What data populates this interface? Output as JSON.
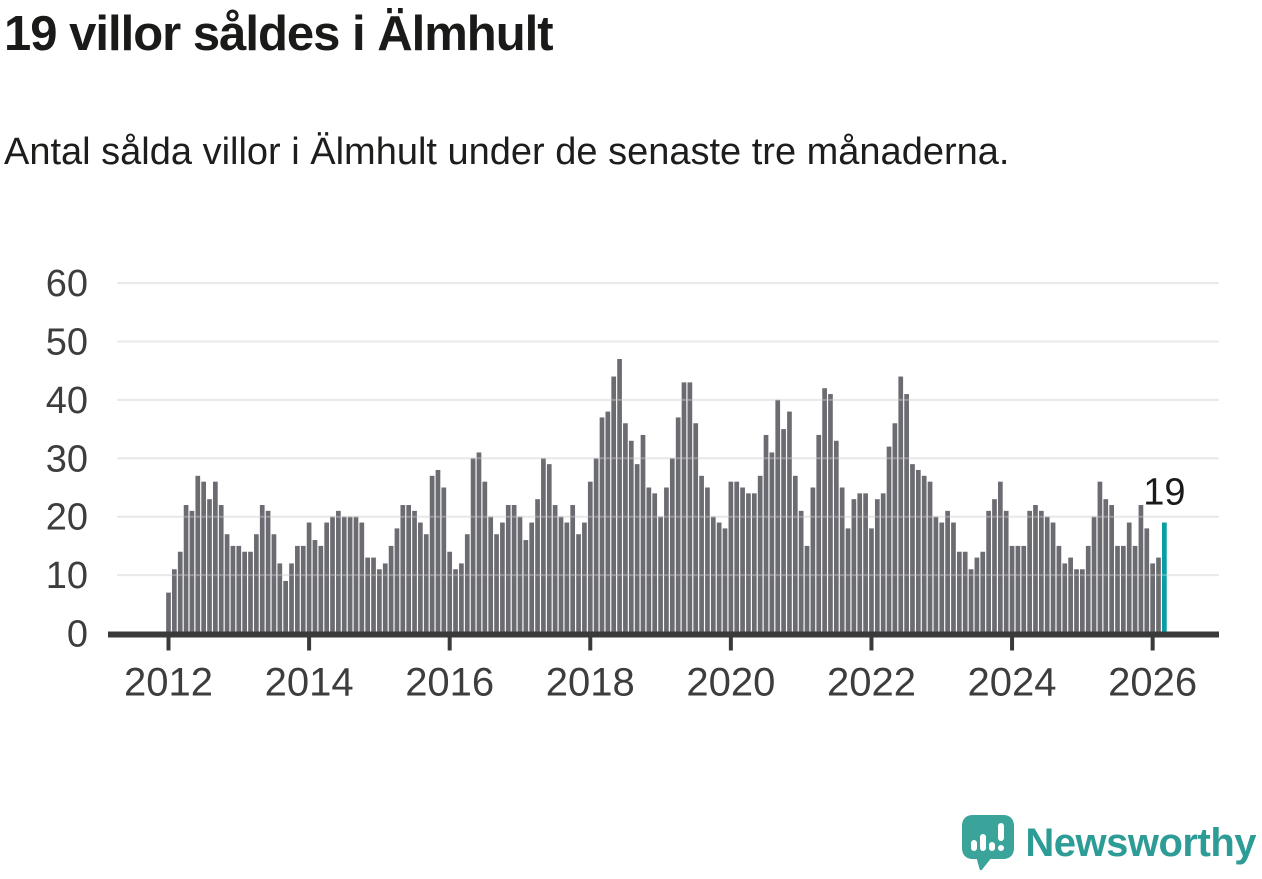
{
  "header": {
    "title": "19 villor såldes i Älmhult",
    "subtitle": "Antal sålda villor i Älmhult under de senaste tre månaderna."
  },
  "chart_data": {
    "type": "bar",
    "title": "19 villor såldes i Älmhult",
    "xlabel": "",
    "ylabel": "",
    "frequency": "monthly",
    "x_start": "2012-01",
    "x_end": "2026-03",
    "ylim": [
      0,
      60
    ],
    "y_ticks": [
      0,
      10,
      20,
      30,
      40,
      50,
      60
    ],
    "x_tick_labels": [
      "2012",
      "2014",
      "2016",
      "2018",
      "2020",
      "2022",
      "2024",
      "2026"
    ],
    "grid": true,
    "legend": "none",
    "bar_color": "#6b6b72",
    "highlight_color": "#089ea4",
    "highlight_index": 170,
    "annotation": {
      "text": "19",
      "index": 170,
      "value": 19
    },
    "values": [
      7,
      11,
      14,
      22,
      21,
      27,
      26,
      23,
      26,
      22,
      17,
      15,
      15,
      14,
      14,
      17,
      22,
      21,
      17,
      12,
      9,
      12,
      15,
      15,
      19,
      16,
      15,
      19,
      20,
      21,
      20,
      20,
      20,
      19,
      13,
      13,
      11,
      12,
      15,
      18,
      22,
      22,
      21,
      19,
      17,
      27,
      28,
      25,
      14,
      11,
      12,
      17,
      30,
      31,
      26,
      20,
      17,
      19,
      22,
      22,
      20,
      16,
      19,
      23,
      30,
      29,
      22,
      20,
      19,
      22,
      17,
      19,
      26,
      30,
      37,
      38,
      44,
      47,
      36,
      33,
      29,
      34,
      25,
      24,
      20,
      25,
      30,
      37,
      43,
      43,
      36,
      27,
      25,
      20,
      19,
      18,
      26,
      26,
      25,
      24,
      24,
      27,
      34,
      31,
      40,
      35,
      38,
      27,
      21,
      15,
      25,
      34,
      42,
      41,
      33,
      25,
      18,
      23,
      24,
      24,
      18,
      23,
      24,
      32,
      36,
      44,
      41,
      29,
      28,
      27,
      26,
      20,
      19,
      21,
      19,
      14,
      14,
      11,
      13,
      14,
      21,
      23,
      26,
      21,
      15,
      15,
      15,
      21,
      22,
      21,
      20,
      19,
      15,
      12,
      13,
      11,
      11,
      15,
      20,
      26,
      23,
      22,
      15,
      15,
      19,
      15,
      22,
      18,
      12,
      13,
      19
    ]
  },
  "footer": {
    "brand": "Newsworthy",
    "brand_color": "#2d9c96",
    "logo_color": "#3aa39a",
    "logo_icon": "speech-bubble-bars-exclamation"
  }
}
